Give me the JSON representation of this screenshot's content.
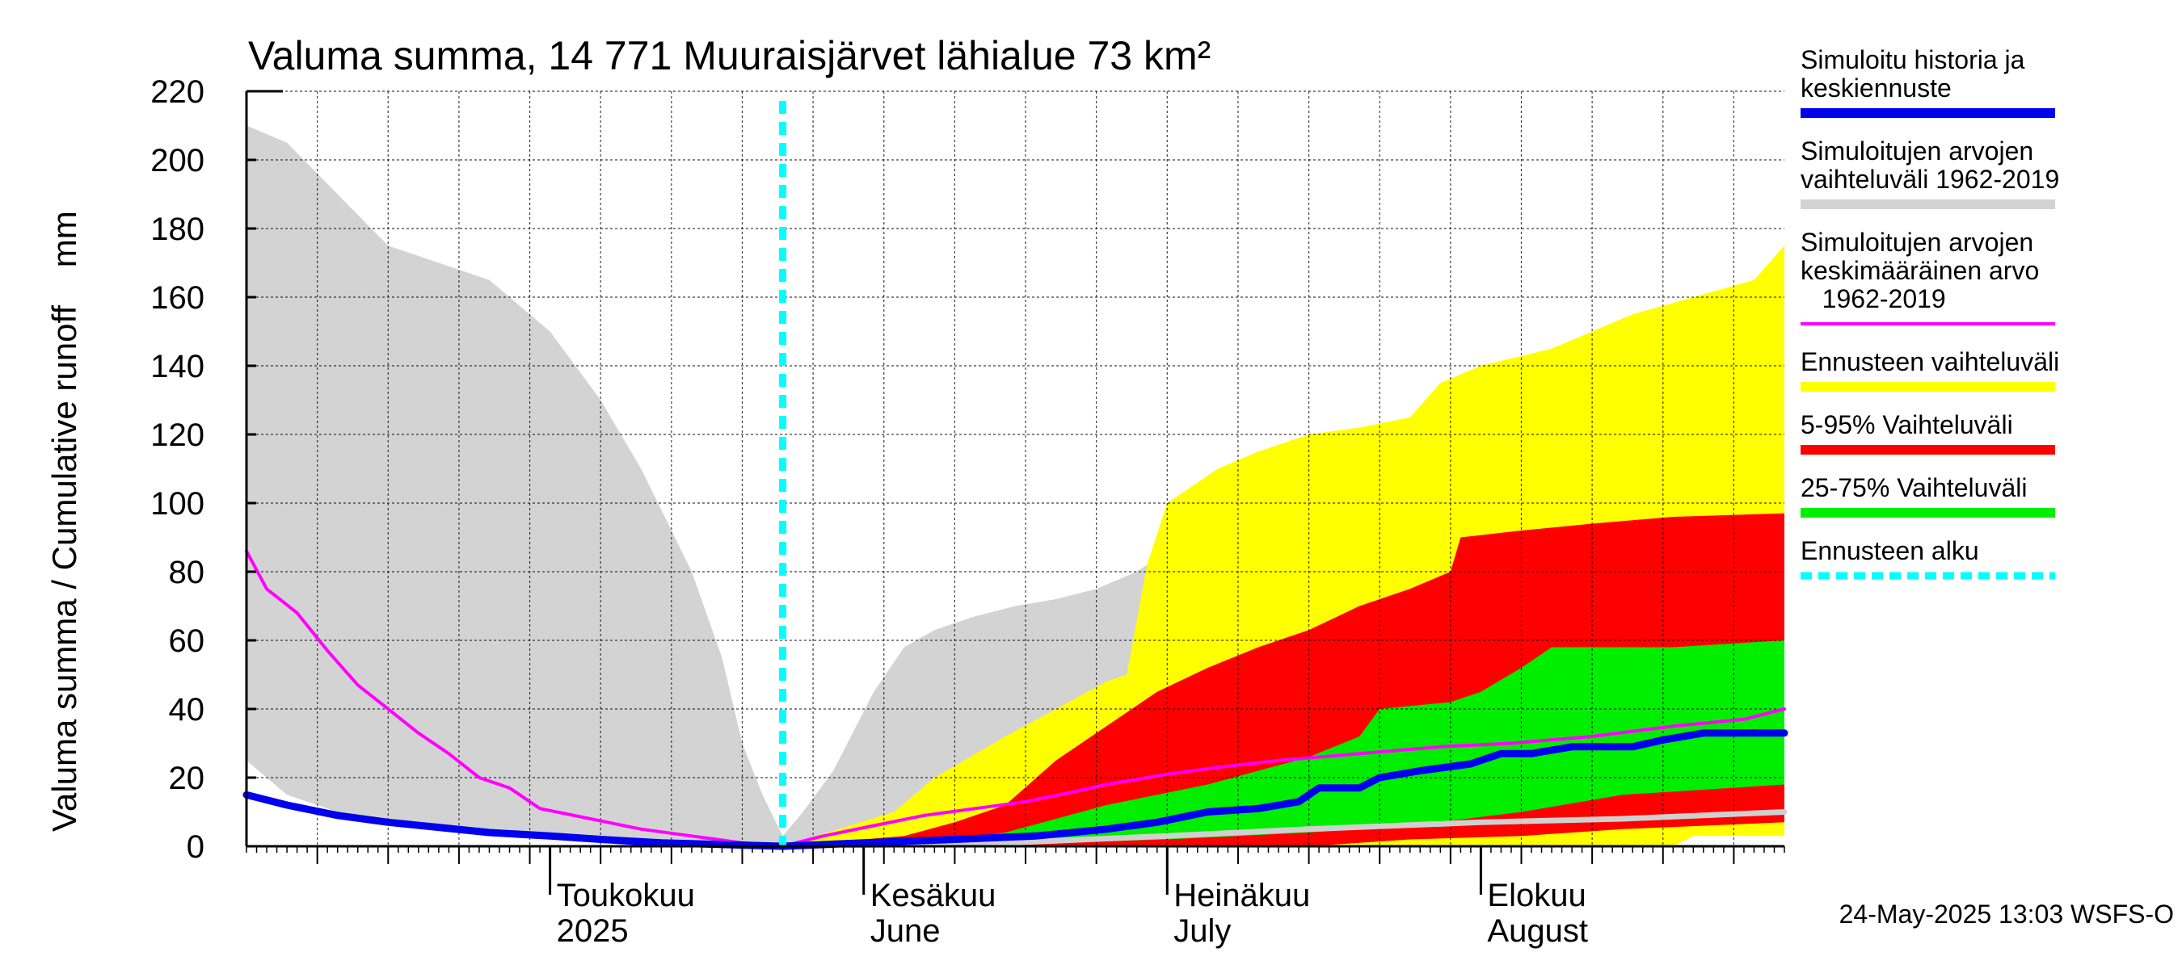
{
  "chart_data": {
    "type": "area",
    "title": "Valuma summa, 14 771 Muuraisjärvet lähialue 73 km²",
    "ylabel": "Valuma summa / Cumulative runoff    mm",
    "ylim": [
      0,
      220
    ],
    "yticks": [
      0,
      20,
      40,
      60,
      80,
      100,
      120,
      140,
      160,
      180,
      200,
      220
    ],
    "xlim": [
      "2025-04-01",
      "2025-08-31"
    ],
    "month_labels": [
      {
        "date": "2025-05-01",
        "line1": "Toukokuu",
        "line2": "2025"
      },
      {
        "date": "2025-06-01",
        "line1": "Kesäkuu",
        "line2": "June"
      },
      {
        "date": "2025-07-01",
        "line1": "Heinäkuu",
        "line2": "July"
      },
      {
        "date": "2025-08-01",
        "line1": "Elokuu",
        "line2": "August"
      }
    ],
    "forecast_start": "2025-05-24",
    "footer": "24-May-2025 13:03 WSFS-O",
    "colors": {
      "hist_range": "#d3d3d3",
      "mean": "#ff00ff",
      "simulated": "#0000ee",
      "forecast_range": "#ffff00",
      "p5_95": "#ff0000",
      "p25_75": "#00ee00",
      "forecast_line": "#00ffff",
      "median_light": "#d0d0d0"
    },
    "legend": [
      {
        "label": [
          "Simuloitu historia ja",
          "keskiennuste"
        ],
        "color": "#0000ee",
        "style": "solid"
      },
      {
        "label": [
          "Simuloitujen arvojen",
          "vaihteluväli 1962-2019"
        ],
        "color": "#d3d3d3",
        "style": "solid"
      },
      {
        "label": [
          "Simuloitujen arvojen",
          "keskimääräinen arvo",
          "   1962-2019"
        ],
        "color": "#ff00ff",
        "style": "thin"
      },
      {
        "label": [
          "Ennusteen vaihteluväli"
        ],
        "color": "#ffff00",
        "style": "solid"
      },
      {
        "label": [
          "5-95% Vaihteluväli"
        ],
        "color": "#ff0000",
        "style": "solid"
      },
      {
        "label": [
          "25-75% Vaihteluväli"
        ],
        "color": "#00ee00",
        "style": "solid"
      },
      {
        "label": [
          "Ennusteen alku"
        ],
        "color": "#00ffff",
        "style": "dashed"
      }
    ],
    "series": {
      "hist_upper": [
        [
          "2025-04-01",
          210
        ],
        [
          "2025-04-05",
          205
        ],
        [
          "2025-04-10",
          190
        ],
        [
          "2025-04-15",
          175
        ],
        [
          "2025-04-20",
          170
        ],
        [
          "2025-04-25",
          165
        ],
        [
          "2025-05-01",
          150
        ],
        [
          "2025-05-06",
          130
        ],
        [
          "2025-05-10",
          110
        ],
        [
          "2025-05-15",
          80
        ],
        [
          "2025-05-18",
          55
        ],
        [
          "2025-05-20",
          30
        ],
        [
          "2025-05-22",
          15
        ],
        [
          "2025-05-24",
          3
        ],
        [
          "2025-05-26",
          10
        ],
        [
          "2025-05-29",
          22
        ],
        [
          "2025-06-02",
          45
        ],
        [
          "2025-06-05",
          58
        ],
        [
          "2025-06-08",
          63
        ],
        [
          "2025-06-12",
          67
        ],
        [
          "2025-06-16",
          70
        ],
        [
          "2025-06-20",
          72
        ],
        [
          "2025-06-24",
          75
        ],
        [
          "2025-06-28",
          80
        ],
        [
          "2025-06-29",
          82
        ]
      ],
      "hist_lower": [
        [
          "2025-04-01",
          25
        ],
        [
          "2025-04-05",
          15
        ],
        [
          "2025-04-10",
          10
        ],
        [
          "2025-04-20",
          5
        ],
        [
          "2025-05-01",
          2
        ],
        [
          "2025-05-15",
          0.5
        ],
        [
          "2025-05-24",
          0
        ],
        [
          "2025-06-10",
          0
        ],
        [
          "2025-06-29",
          0
        ]
      ],
      "forecast_upper": [
        [
          "2025-05-24",
          0
        ],
        [
          "2025-06-04",
          10
        ],
        [
          "2025-06-08",
          20
        ],
        [
          "2025-06-15",
          32
        ],
        [
          "2025-06-20",
          40
        ],
        [
          "2025-06-25",
          48
        ],
        [
          "2025-06-27",
          50
        ],
        [
          "2025-06-29",
          82
        ],
        [
          "2025-07-01",
          100
        ],
        [
          "2025-07-06",
          110
        ],
        [
          "2025-07-10",
          115
        ],
        [
          "2025-07-15",
          120
        ],
        [
          "2025-07-20",
          122
        ],
        [
          "2025-07-25",
          125
        ],
        [
          "2025-07-28",
          135
        ],
        [
          "2025-08-01",
          140
        ],
        [
          "2025-08-08",
          145
        ],
        [
          "2025-08-12",
          150
        ],
        [
          "2025-08-16",
          155
        ],
        [
          "2025-08-22",
          160
        ],
        [
          "2025-08-28",
          165
        ],
        [
          "2025-08-31",
          175
        ]
      ],
      "forecast_lower": [
        [
          "2025-05-24",
          0
        ],
        [
          "2025-08-20",
          0
        ],
        [
          "2025-08-22",
          3
        ],
        [
          "2025-08-31",
          3
        ]
      ],
      "p95": [
        [
          "2025-05-24",
          0
        ],
        [
          "2025-06-05",
          3
        ],
        [
          "2025-06-10",
          7
        ],
        [
          "2025-06-15",
          12
        ],
        [
          "2025-06-20",
          25
        ],
        [
          "2025-06-25",
          35
        ],
        [
          "2025-06-30",
          45
        ],
        [
          "2025-07-05",
          52
        ],
        [
          "2025-07-10",
          58
        ],
        [
          "2025-07-15",
          63
        ],
        [
          "2025-07-20",
          70
        ],
        [
          "2025-07-25",
          75
        ],
        [
          "2025-07-29",
          80
        ],
        [
          "2025-07-30",
          90
        ],
        [
          "2025-08-05",
          92
        ],
        [
          "2025-08-12",
          94
        ],
        [
          "2025-08-20",
          96
        ],
        [
          "2025-08-31",
          97
        ]
      ],
      "p5": [
        [
          "2025-05-24",
          0
        ],
        [
          "2025-07-15",
          0
        ],
        [
          "2025-07-20",
          1
        ],
        [
          "2025-07-25",
          2
        ],
        [
          "2025-08-05",
          3
        ],
        [
          "2025-08-15",
          5
        ],
        [
          "2025-08-31",
          7
        ]
      ],
      "p75": [
        [
          "2025-05-24",
          0
        ],
        [
          "2025-06-10",
          2
        ],
        [
          "2025-06-15",
          4
        ],
        [
          "2025-06-20",
          8
        ],
        [
          "2025-06-25",
          12
        ],
        [
          "2025-06-30",
          15
        ],
        [
          "2025-07-05",
          18
        ],
        [
          "2025-07-10",
          22
        ],
        [
          "2025-07-15",
          26
        ],
        [
          "2025-07-20",
          32
        ],
        [
          "2025-07-22",
          40
        ],
        [
          "2025-07-29",
          42
        ],
        [
          "2025-08-01",
          45
        ],
        [
          "2025-08-05",
          52
        ],
        [
          "2025-08-08",
          58
        ],
        [
          "2025-08-20",
          58
        ],
        [
          "2025-08-31",
          60
        ]
      ],
      "p25": [
        [
          "2025-05-24",
          0
        ],
        [
          "2025-06-20",
          1
        ],
        [
          "2025-07-01",
          2
        ],
        [
          "2025-07-15",
          4
        ],
        [
          "2025-07-25",
          6
        ],
        [
          "2025-08-05",
          10
        ],
        [
          "2025-08-15",
          15
        ],
        [
          "2025-08-31",
          18
        ]
      ],
      "median_light": [
        [
          "2025-05-24",
          0
        ],
        [
          "2025-06-15",
          1
        ],
        [
          "2025-07-01",
          3
        ],
        [
          "2025-07-15",
          5
        ],
        [
          "2025-08-01",
          7
        ],
        [
          "2025-08-15",
          8
        ],
        [
          "2025-08-31",
          10
        ]
      ],
      "mean": [
        [
          "2025-04-01",
          86
        ],
        [
          "2025-04-03",
          75
        ],
        [
          "2025-04-06",
          68
        ],
        [
          "2025-04-09",
          57
        ],
        [
          "2025-04-12",
          47
        ],
        [
          "2025-04-15",
          40
        ],
        [
          "2025-04-18",
          33
        ],
        [
          "2025-04-21",
          27
        ],
        [
          "2025-04-24",
          20
        ],
        [
          "2025-04-27",
          17
        ],
        [
          "2025-04-30",
          11
        ],
        [
          "2025-05-05",
          8
        ],
        [
          "2025-05-10",
          5
        ],
        [
          "2025-05-15",
          3
        ],
        [
          "2025-05-20",
          1
        ],
        [
          "2025-05-24",
          0
        ],
        [
          "2025-05-28",
          3
        ],
        [
          "2025-06-02",
          6
        ],
        [
          "2025-06-07",
          9
        ],
        [
          "2025-06-12",
          11
        ],
        [
          "2025-06-17",
          13
        ],
        [
          "2025-06-22",
          16
        ],
        [
          "2025-06-25",
          18
        ],
        [
          "2025-07-01",
          21
        ],
        [
          "2025-07-06",
          23
        ],
        [
          "2025-07-12",
          25
        ],
        [
          "2025-07-20",
          27
        ],
        [
          "2025-07-28",
          29
        ],
        [
          "2025-08-04",
          30
        ],
        [
          "2025-08-12",
          32
        ],
        [
          "2025-08-20",
          35
        ],
        [
          "2025-08-27",
          37
        ],
        [
          "2025-08-31",
          40
        ]
      ],
      "simulated": [
        [
          "2025-04-01",
          15
        ],
        [
          "2025-04-05",
          12
        ],
        [
          "2025-04-10",
          9
        ],
        [
          "2025-04-15",
          7
        ],
        [
          "2025-04-20",
          5.5
        ],
        [
          "2025-04-25",
          4
        ],
        [
          "2025-05-01",
          3
        ],
        [
          "2025-05-06",
          2
        ],
        [
          "2025-05-12",
          1
        ],
        [
          "2025-05-18",
          0.5
        ],
        [
          "2025-05-24",
          0
        ],
        [
          "2025-06-01",
          1
        ],
        [
          "2025-06-10",
          2
        ],
        [
          "2025-06-18",
          3
        ],
        [
          "2025-06-25",
          5
        ],
        [
          "2025-06-30",
          7
        ],
        [
          "2025-07-05",
          10
        ],
        [
          "2025-07-10",
          11
        ],
        [
          "2025-07-14",
          13
        ],
        [
          "2025-07-16",
          17
        ],
        [
          "2025-07-20",
          17
        ],
        [
          "2025-07-22",
          20
        ],
        [
          "2025-07-26",
          22
        ],
        [
          "2025-07-31",
          24
        ],
        [
          "2025-08-03",
          27
        ],
        [
          "2025-08-06",
          27
        ],
        [
          "2025-08-10",
          29
        ],
        [
          "2025-08-16",
          29
        ],
        [
          "2025-08-19",
          31
        ],
        [
          "2025-08-23",
          33
        ],
        [
          "2025-08-31",
          33
        ]
      ]
    }
  }
}
